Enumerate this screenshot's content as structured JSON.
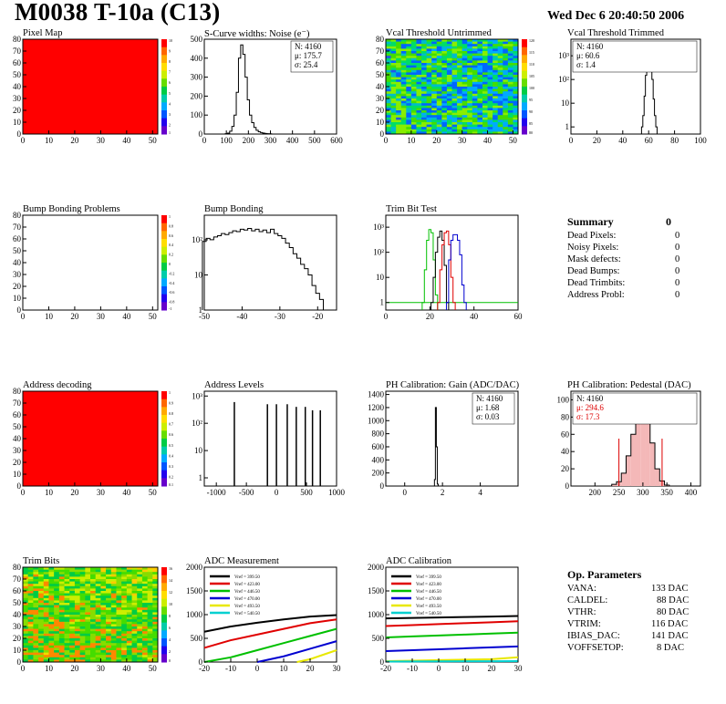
{
  "header": {
    "title": "M0038 T-10a (C13)",
    "date": "Wed Dec  6 20:40:50 2006"
  },
  "panels": {
    "pixel_map": {
      "title": "Pixel Map",
      "xticks": [
        "0",
        "10",
        "20",
        "30",
        "40",
        "50"
      ],
      "yticks": [
        "0",
        "10",
        "20",
        "30",
        "40",
        "50",
        "60",
        "70",
        "80"
      ],
      "palette_ticks": [
        "10",
        "9",
        "8",
        "7",
        "6",
        "5",
        "4",
        "3",
        "2",
        "1"
      ]
    },
    "scurve": {
      "title": "S-Curve widths: Noise (e⁻)",
      "stats": {
        "N": "N: 4160",
        "mu": "μ: 175.7",
        "sigma": "σ: 25.4"
      }
    },
    "vcal_untrimmed": {
      "title": "Vcal Threshold Untrimmed",
      "palette_ticks": [
        "120",
        "115",
        "110",
        "105",
        "100",
        "95",
        "90",
        "85",
        "80"
      ]
    },
    "vcal_trimmed": {
      "title": "Vcal Threshold Trimmed",
      "stats": {
        "N": "N: 4160",
        "mu": "μ: 60.6",
        "sigma": "σ: 1.4"
      }
    },
    "bump_problems": {
      "title": "Bump Bonding Problems",
      "palette_ticks": [
        "1",
        "0.8",
        "0.6",
        "0.4",
        "0.2",
        "0",
        "-0.2",
        "-0.4",
        "-0.6",
        "-0.8",
        "-1"
      ]
    },
    "bump_bonding": {
      "title": "Bump Bonding"
    },
    "trim_bit_test": {
      "title": "Trim Bit Test"
    },
    "address_decoding": {
      "title": "Address decoding",
      "palette_ticks": [
        "1",
        "0.9",
        "0.8",
        "0.7",
        "0.6",
        "0.5",
        "0.4",
        "0.3",
        "0.2",
        "0.1"
      ]
    },
    "address_levels": {
      "title": "Address Levels"
    },
    "ph_gain": {
      "title": "PH Calibration: Gain (ADC/DAC)",
      "stats": {
        "N": "N: 4160",
        "mu": "μ: 1.68",
        "sigma": "σ: 0.03"
      }
    },
    "ph_pedestal": {
      "title": "PH Calibration: Pedestal (DAC)",
      "stats": {
        "N": "N: 4160",
        "mu": "μ: 294.6",
        "sigma": "σ: 17.3"
      }
    },
    "trim_bits": {
      "title": "Trim Bits",
      "palette_ticks": [
        "16",
        "14",
        "12",
        "10",
        "8",
        "6",
        "4",
        "2",
        "0"
      ]
    },
    "adc_measurement": {
      "title": "ADC Measurement"
    },
    "adc_calibration": {
      "title": "ADC Calibration"
    }
  },
  "summary": {
    "heading": "Summary",
    "heading_value": "0",
    "rows": [
      {
        "label": "Dead Pixels:",
        "value": "0"
      },
      {
        "label": "Noisy Pixels:",
        "value": "0"
      },
      {
        "label": "Mask defects:",
        "value": "0"
      },
      {
        "label": "Dead Bumps:",
        "value": "0"
      },
      {
        "label": "Dead Trimbits:",
        "value": "0"
      },
      {
        "label": "Address Probl:",
        "value": "0"
      }
    ]
  },
  "op_parameters": {
    "heading": "Op. Parameters",
    "rows": [
      {
        "label": "VANA:",
        "value": "133 DAC"
      },
      {
        "label": "CALDEL:",
        "value": "88 DAC"
      },
      {
        "label": "VTHR:",
        "value": "80 DAC"
      },
      {
        "label": "VTRIM:",
        "value": "116 DAC"
      },
      {
        "label": "IBIAS_DAC:",
        "value": "141 DAC"
      },
      {
        "label": "VOFFSETOP:",
        "value": "8 DAC"
      }
    ]
  },
  "chart_data": [
    {
      "id": "pixel_map",
      "type": "heatmap",
      "title": "Pixel Map",
      "xlim": [
        0,
        52
      ],
      "ylim": [
        0,
        80
      ],
      "uniform_value": 10,
      "zlim": [
        0,
        10
      ]
    },
    {
      "id": "scurve",
      "type": "bar",
      "title": "S-Curve widths: Noise (e⁻)",
      "xlim": [
        0,
        600
      ],
      "ylim": [
        0,
        500
      ],
      "x": [
        100,
        110,
        120,
        130,
        140,
        150,
        160,
        170,
        180,
        190,
        200,
        210,
        220,
        230,
        240,
        250,
        260,
        270,
        280,
        290,
        300
      ],
      "values": [
        2,
        5,
        15,
        40,
        100,
        220,
        400,
        470,
        420,
        300,
        180,
        100,
        60,
        35,
        20,
        12,
        8,
        5,
        3,
        2,
        1
      ]
    },
    {
      "id": "vcal_untrimmed",
      "type": "heatmap",
      "title": "Vcal Threshold Untrimmed",
      "xlim": [
        0,
        52
      ],
      "ylim": [
        0,
        80
      ],
      "zlim": [
        80,
        120
      ]
    },
    {
      "id": "vcal_trimmed",
      "type": "bar",
      "title": "Vcal Threshold Trimmed",
      "xlim": [
        0,
        100
      ],
      "ylim": [
        0.5,
        5000
      ],
      "log_y": true,
      "x": [
        55,
        56,
        57,
        58,
        59,
        60,
        61,
        62,
        63,
        64,
        65,
        66
      ],
      "values": [
        1,
        3,
        20,
        150,
        600,
        1100,
        900,
        400,
        100,
        15,
        3,
        1
      ]
    },
    {
      "id": "bump_problems",
      "type": "heatmap",
      "title": "Bump Bonding Problems",
      "xlim": [
        0,
        52
      ],
      "ylim": [
        0,
        80
      ],
      "zlim": [
        -1,
        1
      ],
      "empty": true
    },
    {
      "id": "bump_bonding",
      "type": "bar",
      "title": "Bump Bonding",
      "xlim": [
        -50,
        -15
      ],
      "ylim": [
        1,
        500
      ],
      "log_y": true,
      "x": [
        -50,
        -49,
        -48,
        -47,
        -46,
        -45,
        -44,
        -43,
        -42,
        -41,
        -40,
        -39,
        -38,
        -37,
        -36,
        -35,
        -34,
        -33,
        -32,
        -31,
        -30,
        -29,
        -28,
        -27,
        -26,
        -25,
        -24,
        -23,
        -22,
        -21,
        -20,
        -19,
        -18
      ],
      "values": [
        90,
        110,
        100,
        120,
        130,
        150,
        140,
        160,
        180,
        170,
        200,
        190,
        210,
        180,
        200,
        170,
        190,
        160,
        200,
        150,
        130,
        110,
        80,
        60,
        40,
        30,
        20,
        15,
        10,
        5,
        3,
        2,
        1
      ]
    },
    {
      "id": "trim_bit_test",
      "type": "line",
      "title": "Trim Bit Test",
      "xlim": [
        0,
        60
      ],
      "ylim": [
        0.5,
        3000
      ],
      "log_y": true,
      "series": [
        {
          "color": "#00c000",
          "x": [
            17,
            18,
            19,
            20,
            21,
            22,
            23
          ],
          "values": [
            1,
            20,
            300,
            800,
            600,
            50,
            2
          ]
        },
        {
          "color": "#000000",
          "x": [
            21,
            22,
            23,
            24,
            25,
            26,
            27,
            28
          ],
          "values": [
            1,
            10,
            100,
            400,
            700,
            300,
            30,
            1
          ]
        },
        {
          "color": "#e00000",
          "x": [
            24,
            25,
            26,
            27,
            28,
            29,
            30,
            31
          ],
          "values": [
            1,
            20,
            200,
            600,
            700,
            200,
            10,
            1
          ]
        },
        {
          "color": "#0000d0",
          "x": [
            28,
            29,
            30,
            31,
            32,
            33,
            34,
            35,
            36
          ],
          "values": [
            1,
            50,
            300,
            500,
            500,
            300,
            80,
            5,
            1
          ]
        }
      ]
    },
    {
      "id": "address_decoding",
      "type": "heatmap",
      "title": "Address decoding",
      "xlim": [
        0,
        52
      ],
      "ylim": [
        0,
        80
      ],
      "uniform_value": 1,
      "zlim": [
        0,
        1
      ]
    },
    {
      "id": "address_levels",
      "type": "bar",
      "title": "Address Levels",
      "xlim": [
        -1200,
        1000
      ],
      "ylim": [
        0.5,
        1500
      ],
      "log_y": true,
      "x": [
        -700,
        -150,
        0,
        180,
        330,
        480,
        600,
        730
      ],
      "values": [
        600,
        500,
        500,
        500,
        400,
        400,
        300,
        300
      ]
    },
    {
      "id": "ph_gain",
      "type": "bar",
      "title": "PH Calibration: Gain (ADC/DAC)",
      "xlim": [
        -1,
        6
      ],
      "ylim": [
        0,
        1450
      ],
      "x": [
        1.6,
        1.65,
        1.7,
        1.75
      ],
      "values": [
        100,
        1200,
        600,
        30
      ]
    },
    {
      "id": "ph_pedestal",
      "type": "bar",
      "title": "PH Calibration: Pedestal (DAC)",
      "xlim": [
        150,
        420
      ],
      "ylim": [
        0,
        110
      ],
      "x": [
        240,
        250,
        260,
        270,
        280,
        290,
        300,
        310,
        320,
        330,
        340,
        350
      ],
      "values": [
        2,
        5,
        15,
        35,
        60,
        85,
        95,
        80,
        50,
        20,
        6,
        1
      ]
    },
    {
      "id": "trim_bits",
      "type": "heatmap",
      "title": "Trim Bits",
      "xlim": [
        0,
        52
      ],
      "ylim": [
        0,
        80
      ],
      "zlim": [
        0,
        16
      ]
    },
    {
      "id": "adc_measurement",
      "type": "line",
      "title": "ADC Measurement",
      "xlim": [
        -20,
        30
      ],
      "ylim": [
        0,
        2000
      ],
      "series": [
        {
          "name": "Vref = 399.50",
          "color": "#000000",
          "x": [
            -20,
            -10,
            0,
            10,
            20,
            30
          ],
          "values": [
            640,
            750,
            830,
            900,
            960,
            990
          ]
        },
        {
          "name": "Vref = 423.00",
          "color": "#e00000",
          "x": [
            -20,
            -10,
            0,
            10,
            20,
            30
          ],
          "values": [
            300,
            460,
            580,
            700,
            820,
            900
          ]
        },
        {
          "name": "Vref = 446.50",
          "color": "#00c000",
          "x": [
            -20,
            -10,
            0,
            10,
            20,
            30
          ],
          "values": [
            0,
            100,
            250,
            400,
            550,
            700
          ]
        },
        {
          "name": "Vref = 470.00",
          "color": "#0000d0",
          "x": [
            0,
            10,
            20,
            30
          ],
          "values": [
            0,
            120,
            280,
            440
          ]
        },
        {
          "name": "Vref = 493.50",
          "color": "#e8e800",
          "x": [
            15,
            20,
            30
          ],
          "values": [
            0,
            60,
            250
          ]
        },
        {
          "name": "Vref = 540.50",
          "color": "#00d0d0",
          "x": [],
          "values": []
        }
      ]
    },
    {
      "id": "adc_calibration",
      "type": "line",
      "title": "ADC Calibration",
      "xlim": [
        -20,
        30
      ],
      "ylim": [
        0,
        2000
      ],
      "series": [
        {
          "name": "Vref = 399.50",
          "color": "#000000",
          "x": [
            -20,
            -10,
            0,
            10,
            20,
            30
          ],
          "values": [
            920,
            930,
            940,
            950,
            960,
            970
          ]
        },
        {
          "name": "Vref = 423.00",
          "color": "#e00000",
          "x": [
            -20,
            -10,
            0,
            10,
            20,
            30
          ],
          "values": [
            760,
            780,
            800,
            820,
            840,
            860
          ]
        },
        {
          "name": "Vref = 446.50",
          "color": "#00c000",
          "x": [
            -20,
            -10,
            0,
            10,
            20,
            30
          ],
          "values": [
            520,
            540,
            560,
            580,
            600,
            620
          ]
        },
        {
          "name": "Vref = 470.00",
          "color": "#0000d0",
          "x": [
            -20,
            -10,
            0,
            10,
            20,
            30
          ],
          "values": [
            230,
            250,
            270,
            290,
            310,
            330
          ]
        },
        {
          "name": "Vref = 493.50",
          "color": "#e8e800",
          "x": [
            -20,
            -10,
            0,
            10,
            20,
            30
          ],
          "values": [
            20,
            30,
            40,
            50,
            60,
            100
          ]
        },
        {
          "name": "Vref = 540.50",
          "color": "#00d0d0",
          "x": [
            -20,
            -10,
            0,
            10,
            20,
            30
          ],
          "values": [
            10,
            12,
            14,
            16,
            18,
            20
          ]
        }
      ]
    }
  ]
}
